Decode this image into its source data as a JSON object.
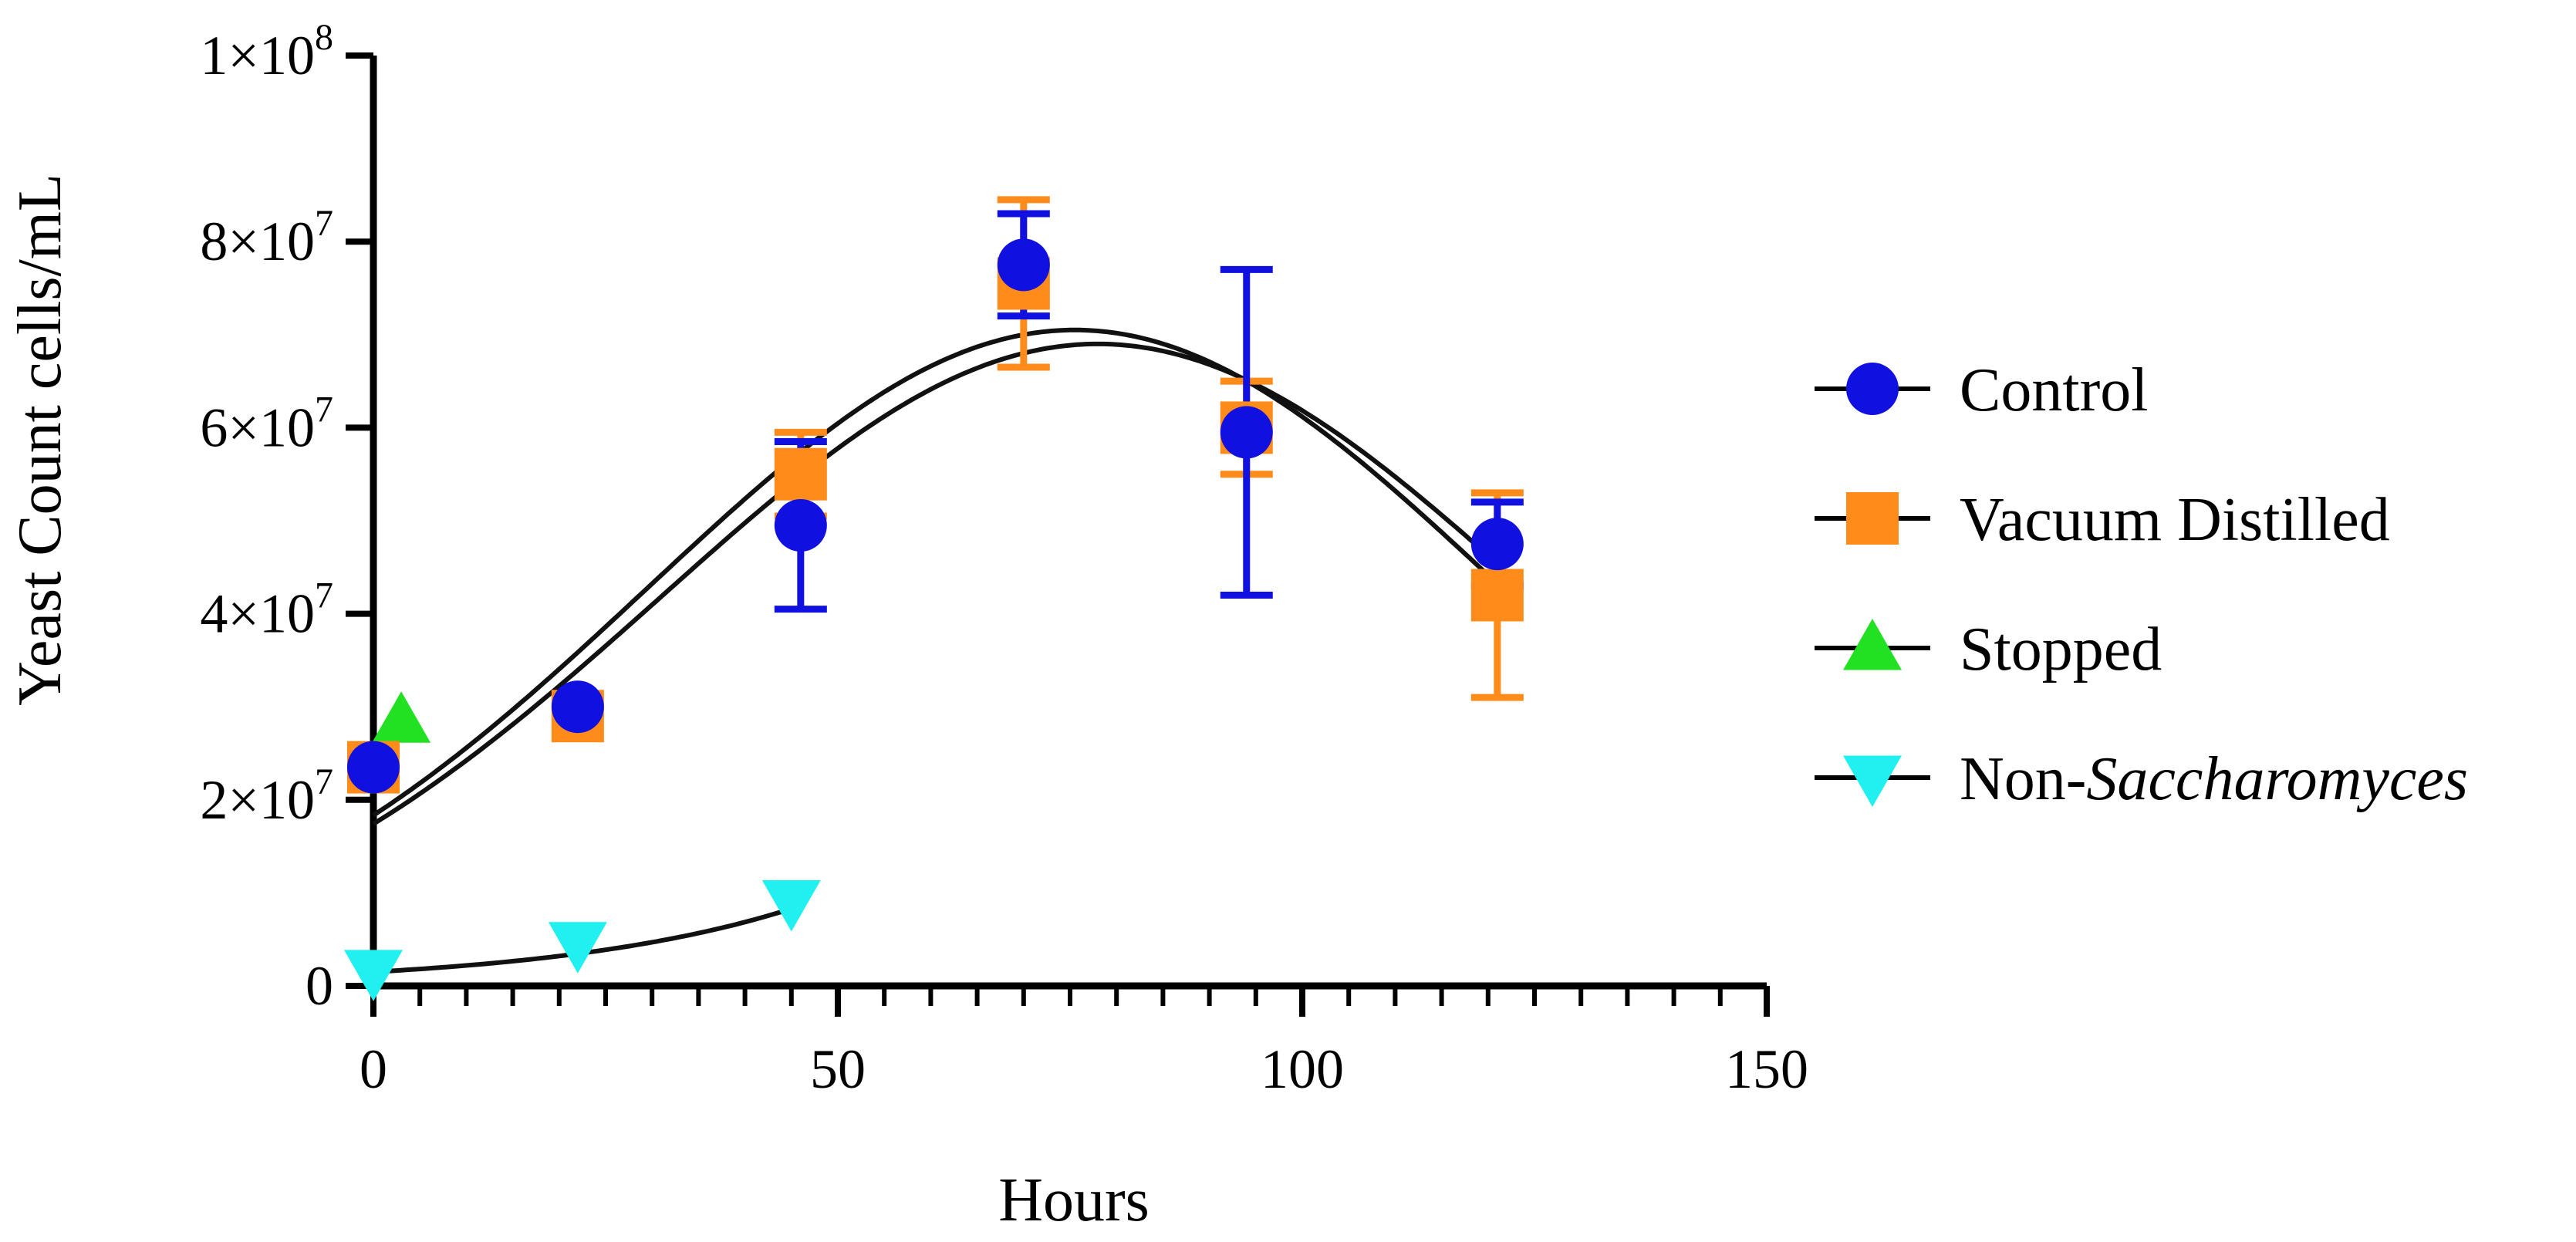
{
  "chart_data": {
    "type": "scatter",
    "title": "",
    "xlabel": "Hours",
    "ylabel": "Yeast Count cells/mL",
    "xlim": [
      0,
      150
    ],
    "ylim": [
      0,
      100000000
    ],
    "x_ticks": [
      0,
      50,
      100,
      150
    ],
    "x_tick_labels": [
      "0",
      "50",
      "100",
      "150"
    ],
    "y_ticks": [
      0,
      20000000,
      40000000,
      60000000,
      80000000,
      100000000
    ],
    "y_tick_labels": [
      {
        "mant": "0",
        "exp": ""
      },
      {
        "mant": "2×10",
        "exp": "7"
      },
      {
        "mant": "4×10",
        "exp": "7"
      },
      {
        "mant": "6×10",
        "exp": "7"
      },
      {
        "mant": "8×10",
        "exp": "7"
      },
      {
        "mant": "1×10",
        "exp": "8"
      }
    ],
    "legend_position": "right",
    "series": [
      {
        "name": "Control",
        "marker": "circle",
        "color": "#1010e0",
        "points": [
          {
            "x": 0,
            "y": 23500000,
            "err": null
          },
          {
            "x": 22,
            "y": 30000000,
            "err": null
          },
          {
            "x": 46,
            "y": 49500000,
            "err": 9000000
          },
          {
            "x": 70,
            "y": 77500000,
            "err": 5500000
          },
          {
            "x": 94,
            "y": 59500000,
            "err": 17500000
          },
          {
            "x": 121,
            "y": 47500000,
            "err": 4500000
          }
        ],
        "fit": {
          "amplitude": 69000000,
          "center": 78,
          "width": 47
        }
      },
      {
        "name": "Vacuum Distilled",
        "marker": "square",
        "color": "#ff8c1a",
        "points": [
          {
            "x": 0,
            "y": 23500000,
            "err": null
          },
          {
            "x": 22,
            "y": 29000000,
            "err": null
          },
          {
            "x": 46,
            "y": 55000000,
            "err": 4500000
          },
          {
            "x": 70,
            "y": 75500000,
            "err": 9000000
          },
          {
            "x": 94,
            "y": 60000000,
            "err": 5000000
          },
          {
            "x": 121,
            "y": 42000000,
            "err": 11000000
          }
        ],
        "fit": {
          "amplitude": 70500000,
          "center": 75.5,
          "width": 46
        }
      },
      {
        "name": "Stopped",
        "marker": "triangle-up",
        "color": "#22e022",
        "points": [
          {
            "x": 3,
            "y": 28500000,
            "err": null
          }
        ],
        "fit": null
      },
      {
        "name": "Non-",
        "name_italic": "Saccharomyces",
        "marker": "triangle-down",
        "color": "#20f0f0",
        "points": [
          {
            "x": 0,
            "y": 1500000,
            "err": null
          },
          {
            "x": 22,
            "y": 4500000,
            "err": null
          },
          {
            "x": 45,
            "y": 9000000,
            "err": null
          }
        ],
        "fit": {
          "type": "exponential",
          "y0": 1500000,
          "rate": 0.038,
          "x_max": 46
        }
      }
    ]
  },
  "colors": {
    "control": "#1010e0",
    "vacuum_distilled": "#ff8c1a",
    "stopped": "#22e022",
    "non_saccharomyces": "#20f0f0",
    "axis": "#000000"
  }
}
